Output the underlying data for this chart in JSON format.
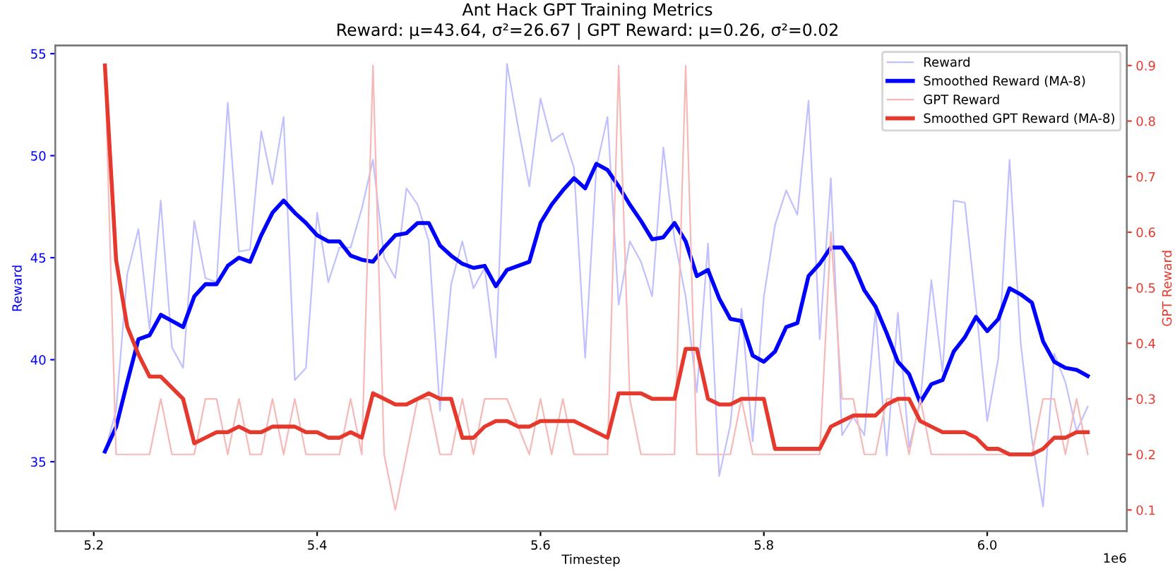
{
  "chart_data": {
    "type": "line",
    "title": "Ant Hack GPT Training Metrics",
    "subtitle": "Reward: μ=43.64, σ²=26.67 | GPT Reward: μ=0.26, σ²=0.02",
    "xlabel": "Timestep",
    "ylabel": "Reward",
    "y2label": "GPT Reward",
    "x": [
      5.21,
      5.22,
      5.23,
      5.24,
      5.25,
      5.26,
      5.27,
      5.28,
      5.29,
      5.3,
      5.31,
      5.32,
      5.33,
      5.34,
      5.35,
      5.36,
      5.37,
      5.38,
      5.39,
      5.4,
      5.41,
      5.42,
      5.43,
      5.44,
      5.45,
      5.46,
      5.47,
      5.48,
      5.49,
      5.5,
      5.51,
      5.52,
      5.53,
      5.54,
      5.55,
      5.56,
      5.57,
      5.58,
      5.59,
      5.6,
      5.61,
      5.62,
      5.63,
      5.64,
      5.65,
      5.66,
      5.67,
      5.68,
      5.69,
      5.7,
      5.71,
      5.72,
      5.73,
      5.74,
      5.75,
      5.76,
      5.77,
      5.78,
      5.79,
      5.8,
      5.81,
      5.82,
      5.83,
      5.84,
      5.85,
      5.86,
      5.87,
      5.88,
      5.89,
      5.9,
      5.91,
      5.92,
      5.93,
      5.94,
      5.95,
      5.96,
      5.97,
      5.98,
      5.99,
      6.0,
      6.01,
      6.02,
      6.03,
      6.04,
      6.05,
      6.06,
      6.07,
      6.08,
      6.09
    ],
    "series": [
      {
        "name": "Reward",
        "color": "#c0c0ff",
        "values": [
          35.5,
          37.5,
          44.2,
          46.4,
          41.5,
          47.8,
          40.6,
          39.6,
          46.8,
          44.0,
          43.8,
          52.6,
          45.3,
          45.4,
          51.2,
          48.6,
          51.9,
          39.0,
          39.6,
          47.2,
          43.8,
          45.5,
          45.5,
          47.4,
          49.8,
          45.0,
          44.0,
          48.4,
          47.6,
          45.8,
          37.5,
          43.7,
          45.8,
          43.5,
          44.5,
          40.1,
          54.5,
          51.4,
          48.5,
          52.8,
          50.7,
          51.1,
          49.4,
          40.1,
          49.4,
          51.9,
          42.7,
          45.8,
          44.8,
          43.1,
          50.4,
          45.9,
          43.1,
          38.4,
          45.7,
          34.3,
          36.8,
          42.5,
          36.0,
          43.1,
          46.6,
          48.3,
          47.1,
          52.7,
          41.0,
          48.9,
          36.3,
          37.2,
          36.3,
          42.4,
          35.3,
          42.3,
          35.7,
          37.9,
          43.9,
          39.4,
          47.8,
          47.7,
          42.6,
          37.0,
          40.1,
          49.8,
          40.8,
          36.1,
          32.8,
          40.3,
          38.9,
          36.5,
          37.7
        ]
      },
      {
        "name": "Smoothed Reward (MA-8)",
        "color": "#0000ff",
        "values": [
          35.5,
          36.7,
          38.9,
          41.0,
          41.2,
          42.2,
          41.9,
          41.6,
          43.1,
          43.7,
          43.7,
          44.6,
          45.0,
          44.8,
          46.1,
          47.2,
          47.8,
          47.2,
          46.7,
          46.1,
          45.8,
          45.8,
          45.1,
          44.9,
          44.8,
          45.5,
          46.1,
          46.2,
          46.7,
          46.7,
          45.6,
          45.1,
          44.7,
          44.5,
          44.6,
          43.6,
          44.4,
          44.6,
          44.8,
          46.7,
          47.6,
          48.3,
          48.9,
          48.4,
          49.6,
          49.3,
          48.5,
          47.6,
          46.8,
          45.9,
          46.0,
          46.7,
          45.8,
          44.1,
          44.4,
          43.0,
          42.0,
          41.9,
          40.2,
          39.9,
          40.4,
          41.6,
          41.8,
          44.1,
          44.7,
          45.5,
          45.5,
          44.7,
          43.4,
          42.6,
          41.3,
          39.9,
          39.3,
          37.9,
          38.8,
          39.0,
          40.4,
          41.1,
          42.1,
          41.4,
          42.0,
          43.5,
          43.2,
          42.8,
          40.9,
          39.9,
          39.6,
          39.5,
          39.2
        ]
      },
      {
        "name": "GPT Reward",
        "color": "#f5b9b7",
        "axis": "y2",
        "values": [
          0.9,
          0.2,
          0.2,
          0.2,
          0.2,
          0.3,
          0.2,
          0.2,
          0.2,
          0.3,
          0.3,
          0.2,
          0.3,
          0.2,
          0.2,
          0.3,
          0.2,
          0.3,
          0.2,
          0.2,
          0.2,
          0.2,
          0.3,
          0.2,
          0.9,
          0.2,
          0.1,
          0.2,
          0.3,
          0.3,
          0.2,
          0.2,
          0.3,
          0.2,
          0.3,
          0.3,
          0.3,
          0.25,
          0.2,
          0.3,
          0.2,
          0.3,
          0.2,
          0.2,
          0.2,
          0.2,
          0.9,
          0.3,
          0.2,
          0.2,
          0.2,
          0.2,
          0.9,
          0.2,
          0.2,
          0.2,
          0.2,
          0.3,
          0.2,
          0.2,
          0.2,
          0.2,
          0.2,
          0.2,
          0.2,
          0.6,
          0.3,
          0.3,
          0.2,
          0.2,
          0.3,
          0.3,
          0.2,
          0.3,
          0.2,
          0.2,
          0.2,
          0.2,
          0.2,
          0.2,
          0.2,
          0.2,
          0.2,
          0.2,
          0.3,
          0.3,
          0.2,
          0.3,
          0.2
        ]
      },
      {
        "name": "Smoothed GPT Reward (MA-8)",
        "color": "#e5392e",
        "axis": "y2",
        "values": [
          0.9,
          0.55,
          0.43,
          0.38,
          0.34,
          0.34,
          0.32,
          0.3,
          0.22,
          0.23,
          0.24,
          0.24,
          0.25,
          0.24,
          0.24,
          0.25,
          0.25,
          0.25,
          0.24,
          0.24,
          0.23,
          0.23,
          0.24,
          0.23,
          0.31,
          0.3,
          0.29,
          0.29,
          0.3,
          0.31,
          0.3,
          0.3,
          0.23,
          0.23,
          0.25,
          0.26,
          0.26,
          0.25,
          0.25,
          0.26,
          0.26,
          0.26,
          0.26,
          0.25,
          0.24,
          0.23,
          0.31,
          0.31,
          0.31,
          0.3,
          0.3,
          0.3,
          0.39,
          0.39,
          0.3,
          0.29,
          0.29,
          0.3,
          0.3,
          0.3,
          0.21,
          0.21,
          0.21,
          0.21,
          0.21,
          0.25,
          0.26,
          0.27,
          0.27,
          0.27,
          0.29,
          0.3,
          0.3,
          0.26,
          0.25,
          0.24,
          0.24,
          0.24,
          0.23,
          0.21,
          0.21,
          0.2,
          0.2,
          0.2,
          0.21,
          0.23,
          0.23,
          0.24,
          0.24
        ]
      }
    ],
    "xlim": [
      5.1655,
      6.125
    ],
    "xticks": [
      {
        "value": 5.2,
        "label": "5.2"
      },
      {
        "value": 5.4,
        "label": "5.4"
      },
      {
        "value": 5.6,
        "label": "5.6"
      },
      {
        "value": 5.8,
        "label": "5.8"
      },
      {
        "value": 6.0,
        "label": "6.0"
      }
    ],
    "ylim": [
      31.6,
      55.4
    ],
    "yticks": [
      35,
      40,
      45,
      50,
      55
    ],
    "y2lim": [
      0.062,
      0.936
    ],
    "y2ticks": [
      0.1,
      0.2,
      0.3,
      0.4,
      0.5,
      0.6,
      0.7,
      0.8,
      0.9
    ],
    "annotations": [
      "1e6"
    ],
    "legend": "top right",
    "grid": false,
    "marker": "none",
    "line_style": "solid"
  }
}
